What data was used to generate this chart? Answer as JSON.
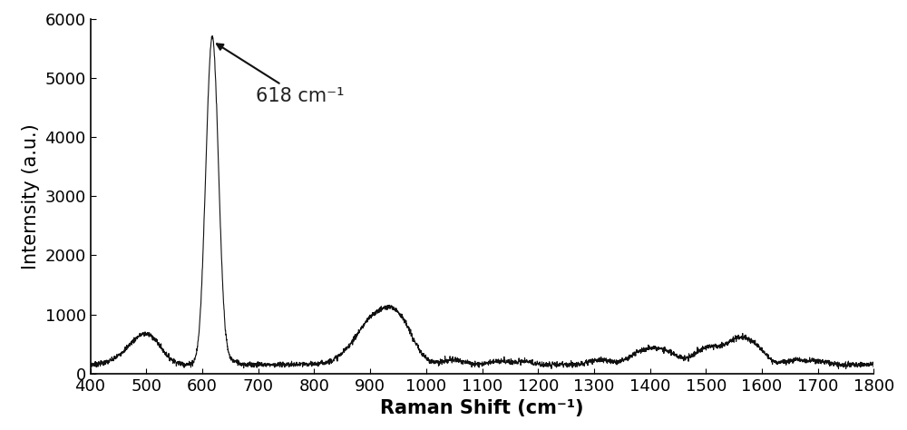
{
  "xlim": [
    400,
    1800
  ],
  "ylim": [
    0,
    6000
  ],
  "xlabel": "Raman Shift (cm⁻¹)",
  "ylabel": "Internsity (a.u.)",
  "annotation_text": "618 cm⁻¹",
  "line_color": "#111111",
  "background_color": "#ffffff",
  "tick_label_fontsize": 13,
  "axis_label_fontsize": 15,
  "annotation_fontsize": 15,
  "yticks": [
    0,
    1000,
    2000,
    3000,
    4000,
    5000,
    6000
  ],
  "xticks": [
    400,
    500,
    600,
    700,
    800,
    900,
    1000,
    1100,
    1200,
    1300,
    1400,
    1500,
    1600,
    1700,
    1800
  ]
}
